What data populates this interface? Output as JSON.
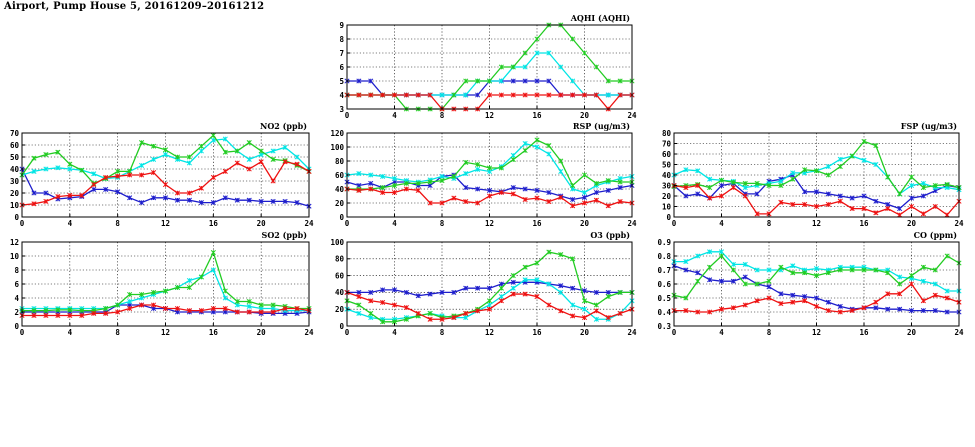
{
  "page": {
    "title": "Airport, Pump House 5, 20161209–20161212"
  },
  "chart_data": [
    {
      "type": "line",
      "title": "AQHI (AQHI)",
      "xlim": [
        0,
        24
      ],
      "xticks": [
        0,
        4,
        8,
        12,
        16,
        20,
        24
      ],
      "ylim": [
        3,
        9
      ],
      "yticks": [
        3,
        4,
        5,
        6,
        7,
        8,
        9
      ],
      "grid": true,
      "series": [
        {
          "color": "#1e1ecc",
          "values": [
            5,
            5,
            5,
            4,
            4,
            4,
            4,
            4,
            4,
            4,
            4,
            4,
            5,
            5,
            5,
            5,
            5,
            5,
            4,
            4,
            4,
            4,
            4,
            4,
            4
          ]
        },
        {
          "color": "#00e5e5",
          "values": [
            4,
            4,
            4,
            4,
            4,
            4,
            4,
            4,
            4,
            4,
            4,
            5,
            5,
            5,
            6,
            6,
            7,
            7,
            6,
            5,
            4,
            4,
            4,
            4,
            4
          ]
        },
        {
          "color": "#22cc22",
          "values": [
            4,
            4,
            4,
            4,
            4,
            3,
            3,
            3,
            3,
            4,
            5,
            5,
            5,
            6,
            6,
            7,
            8,
            9,
            9,
            8,
            7,
            6,
            5,
            5,
            5
          ]
        },
        {
          "color": "#ee1111",
          "values": [
            4,
            4,
            4,
            4,
            4,
            4,
            4,
            4,
            3,
            3,
            3,
            3,
            4,
            4,
            4,
            4,
            4,
            4,
            4,
            4,
            4,
            4,
            3,
            4,
            4
          ]
        }
      ]
    },
    {
      "type": "line",
      "title": "NO2 (ppb)",
      "xlim": [
        0,
        24
      ],
      "xticks": [
        0,
        4,
        8,
        12,
        16,
        20,
        24
      ],
      "ylim": [
        0,
        70
      ],
      "yticks": [
        0,
        10,
        20,
        30,
        40,
        50,
        60,
        70
      ],
      "grid": true,
      "series": [
        {
          "color": "#1e1ecc",
          "values": [
            40,
            20,
            20,
            15,
            16,
            17,
            23,
            23,
            21,
            16,
            12,
            16,
            16,
            14,
            14,
            12,
            12,
            16,
            14,
            14,
            13,
            13,
            13,
            12,
            9
          ]
        },
        {
          "color": "#00e5e5",
          "values": [
            35,
            38,
            40,
            41,
            40,
            39,
            36,
            32,
            33,
            38,
            43,
            48,
            52,
            48,
            45,
            55,
            64,
            65,
            55,
            48,
            52,
            55,
            58,
            50,
            40
          ]
        },
        {
          "color": "#22cc22",
          "values": [
            35,
            49,
            52,
            54,
            44,
            39,
            28,
            32,
            38,
            38,
            62,
            59,
            56,
            50,
            50,
            59,
            68,
            54,
            55,
            62,
            55,
            48,
            47,
            43,
            38
          ]
        },
        {
          "color": "#ee1111",
          "values": [
            10,
            11,
            13,
            17,
            18,
            18,
            27,
            33,
            34,
            35,
            35,
            37,
            27,
            20,
            20,
            24,
            33,
            38,
            45,
            40,
            46,
            30,
            46,
            44,
            38
          ]
        }
      ]
    },
    {
      "type": "line",
      "title": "RSP (ug/m3)",
      "xlim": [
        0,
        24
      ],
      "xticks": [
        0,
        4,
        8,
        12,
        16,
        20,
        24
      ],
      "ylim": [
        0,
        120
      ],
      "yticks": [
        0,
        20,
        40,
        60,
        80,
        100,
        120
      ],
      "grid": true,
      "series": [
        {
          "color": "#1e1ecc",
          "values": [
            50,
            45,
            48,
            42,
            50,
            50,
            45,
            45,
            58,
            60,
            42,
            40,
            38,
            36,
            42,
            40,
            38,
            35,
            30,
            25,
            28,
            35,
            38,
            42,
            45
          ]
        },
        {
          "color": "#00e5e5",
          "values": [
            60,
            62,
            60,
            58,
            55,
            52,
            50,
            53,
            58,
            55,
            62,
            68,
            65,
            72,
            88,
            105,
            100,
            90,
            65,
            40,
            35,
            45,
            50,
            55,
            58
          ]
        },
        {
          "color": "#22cc22",
          "values": [
            40,
            40,
            40,
            42,
            45,
            48,
            48,
            50,
            52,
            58,
            78,
            75,
            70,
            70,
            82,
            95,
            110,
            102,
            80,
            45,
            60,
            48,
            52,
            50,
            50
          ]
        },
        {
          "color": "#ee1111",
          "values": [
            40,
            38,
            40,
            35,
            35,
            40,
            38,
            20,
            20,
            27,
            22,
            20,
            30,
            35,
            33,
            25,
            27,
            22,
            28,
            16,
            20,
            24,
            16,
            22,
            20
          ]
        }
      ]
    },
    {
      "type": "line",
      "title": "FSP (ug/m3)",
      "xlim": [
        0,
        24
      ],
      "xticks": [
        0,
        4,
        8,
        12,
        16,
        20,
        24
      ],
      "ylim": [
        0,
        80
      ],
      "yticks": [
        0,
        10,
        20,
        30,
        40,
        50,
        60,
        70,
        80
      ],
      "grid": true,
      "series": [
        {
          "color": "#1e1ecc",
          "values": [
            30,
            20,
            22,
            18,
            30,
            32,
            22,
            22,
            34,
            36,
            40,
            24,
            24,
            22,
            20,
            18,
            20,
            15,
            12,
            8,
            18,
            20,
            25,
            30,
            28
          ]
        },
        {
          "color": "#00e5e5",
          "values": [
            40,
            45,
            44,
            36,
            35,
            34,
            28,
            30,
            32,
            34,
            42,
            42,
            44,
            48,
            55,
            58,
            54,
            50,
            38,
            22,
            30,
            32,
            28,
            28,
            26
          ]
        },
        {
          "color": "#22cc22",
          "values": [
            29,
            30,
            31,
            28,
            35,
            33,
            32,
            32,
            30,
            30,
            36,
            45,
            44,
            40,
            48,
            58,
            72,
            68,
            38,
            22,
            38,
            28,
            30,
            31,
            28
          ]
        },
        {
          "color": "#ee1111",
          "values": [
            30,
            28,
            30,
            18,
            20,
            28,
            20,
            3,
            3,
            14,
            12,
            12,
            10,
            12,
            15,
            8,
            8,
            4,
            8,
            2,
            10,
            3,
            10,
            2,
            15
          ]
        }
      ]
    },
    {
      "type": "line",
      "title": "SO2 (ppb)",
      "xlim": [
        0,
        24
      ],
      "xticks": [
        0,
        4,
        8,
        12,
        16,
        20,
        24
      ],
      "ylim": [
        0,
        12
      ],
      "yticks": [
        0,
        2,
        4,
        6,
        8,
        10,
        12
      ],
      "grid": true,
      "series": [
        {
          "color": "#1e1ecc",
          "values": [
            2,
            2,
            2,
            2,
            2,
            2,
            2,
            2,
            3,
            3,
            3,
            2.5,
            2.5,
            2,
            2,
            2,
            2,
            2,
            2,
            2,
            1.8,
            1.8,
            1.8,
            1.8,
            2
          ]
        },
        {
          "color": "#00e5e5",
          "values": [
            2.5,
            2.5,
            2.5,
            2.5,
            2.5,
            2.5,
            2.5,
            2.5,
            3,
            3.5,
            4,
            4.5,
            5,
            5.5,
            6.5,
            7,
            8,
            4,
            3,
            2.8,
            2.5,
            2.5,
            2.2,
            2.2,
            2.2
          ]
        },
        {
          "color": "#22cc22",
          "values": [
            2.2,
            2.2,
            2.2,
            2.3,
            2.3,
            2.2,
            2.2,
            2.5,
            3,
            4.5,
            4.5,
            4.8,
            5,
            5.5,
            5.5,
            7,
            10.5,
            5,
            3.5,
            3.5,
            3,
            3,
            2.8,
            2.5,
            2.5
          ]
        },
        {
          "color": "#ee1111",
          "values": [
            1.5,
            1.5,
            1.5,
            1.5,
            1.5,
            1.5,
            1.8,
            1.8,
            2,
            2.5,
            3,
            3,
            2.5,
            2.5,
            2.2,
            2.2,
            2.5,
            2.5,
            2,
            2,
            2,
            2,
            2.5,
            2.5,
            2.2
          ]
        }
      ]
    },
    {
      "type": "line",
      "title": "O3 (ppb)",
      "xlim": [
        0,
        24
      ],
      "xticks": [
        0,
        4,
        8,
        12,
        16,
        20,
        24
      ],
      "ylim": [
        0,
        100
      ],
      "yticks": [
        0,
        20,
        40,
        60,
        80,
        100
      ],
      "grid": true,
      "series": [
        {
          "color": "#1e1ecc",
          "values": [
            40,
            40,
            40,
            43,
            43,
            40,
            36,
            38,
            40,
            40,
            45,
            45,
            45,
            50,
            52,
            52,
            52,
            50,
            48,
            45,
            42,
            40,
            40,
            40,
            40
          ]
        },
        {
          "color": "#00e5e5",
          "values": [
            20,
            15,
            10,
            8,
            8,
            10,
            12,
            15,
            12,
            10,
            10,
            18,
            25,
            35,
            45,
            55,
            55,
            50,
            40,
            25,
            20,
            8,
            8,
            15,
            30
          ]
        },
        {
          "color": "#22cc22",
          "values": [
            30,
            25,
            15,
            5,
            5,
            8,
            12,
            15,
            10,
            12,
            15,
            20,
            30,
            45,
            60,
            70,
            75,
            88,
            85,
            80,
            30,
            25,
            35,
            40,
            40
          ]
        },
        {
          "color": "#ee1111",
          "values": [
            40,
            35,
            30,
            28,
            25,
            22,
            15,
            8,
            8,
            10,
            15,
            18,
            20,
            30,
            38,
            38,
            35,
            25,
            18,
            12,
            10,
            18,
            10,
            15,
            20
          ]
        }
      ]
    },
    {
      "type": "line",
      "title": "CO (ppm)",
      "xlim": [
        0,
        24
      ],
      "xticks": [
        0,
        4,
        8,
        12,
        16,
        20,
        24
      ],
      "ylim": [
        0.3,
        0.9
      ],
      "yticks": [
        0.3,
        0.4,
        0.5,
        0.6,
        0.7,
        0.8,
        0.9
      ],
      "grid": true,
      "series": [
        {
          "color": "#1e1ecc",
          "values": [
            0.73,
            0.7,
            0.68,
            0.63,
            0.62,
            0.62,
            0.65,
            0.6,
            0.58,
            0.53,
            0.52,
            0.51,
            0.5,
            0.47,
            0.44,
            0.42,
            0.43,
            0.43,
            0.42,
            0.42,
            0.41,
            0.41,
            0.41,
            0.4,
            0.4
          ]
        },
        {
          "color": "#00e5e5",
          "values": [
            0.76,
            0.76,
            0.8,
            0.83,
            0.83,
            0.74,
            0.74,
            0.7,
            0.7,
            0.7,
            0.73,
            0.7,
            0.71,
            0.7,
            0.72,
            0.72,
            0.72,
            0.7,
            0.7,
            0.65,
            0.64,
            0.62,
            0.6,
            0.55,
            0.55
          ]
        },
        {
          "color": "#22cc22",
          "values": [
            0.52,
            0.5,
            0.62,
            0.72,
            0.8,
            0.7,
            0.6,
            0.6,
            0.62,
            0.72,
            0.68,
            0.68,
            0.66,
            0.68,
            0.7,
            0.7,
            0.7,
            0.7,
            0.68,
            0.6,
            0.66,
            0.72,
            0.7,
            0.8,
            0.75
          ]
        },
        {
          "color": "#ee1111",
          "values": [
            0.41,
            0.41,
            0.4,
            0.4,
            0.42,
            0.43,
            0.45,
            0.48,
            0.5,
            0.46,
            0.47,
            0.48,
            0.44,
            0.41,
            0.4,
            0.41,
            0.43,
            0.47,
            0.53,
            0.53,
            0.6,
            0.48,
            0.52,
            0.5,
            0.47
          ]
        }
      ]
    }
  ]
}
